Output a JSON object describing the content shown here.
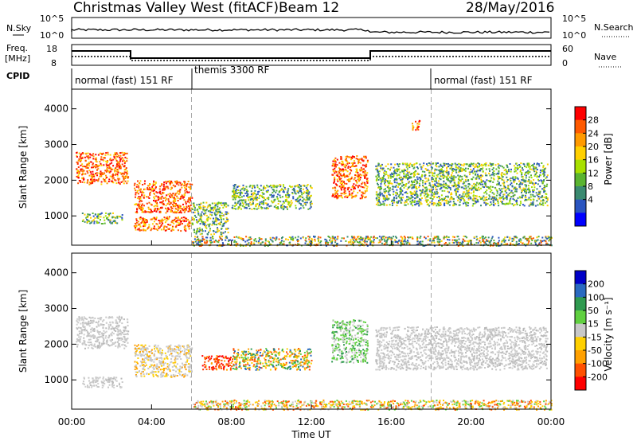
{
  "header": {
    "title": "Christmas Valley West (fitACF)",
    "beam": "Beam 12",
    "date": "28/May/2016"
  },
  "strips": {
    "nsky_label": "N.Sky",
    "nsky_ticks": [
      "10^5",
      "10^0"
    ],
    "nsearch_label": "N.Search",
    "freq_label": "Freq.",
    "freq_unit": "[MHz]",
    "freq_ticks": [
      "18",
      "8"
    ],
    "nave_label": "Nave",
    "nave_ticks": [
      "60",
      "0"
    ],
    "cpid_label": "CPID",
    "cpid_segments": [
      {
        "label": "normal (fast) 151 RF",
        "start_h": 0,
        "end_h": 6
      },
      {
        "label": "themis 3300 RF",
        "start_h": 6,
        "end_h": 18
      },
      {
        "label": "normal (fast) 151 RF",
        "start_h": 18,
        "end_h": 24
      }
    ]
  },
  "chart_data": [
    {
      "type": "heatmap",
      "name": "power-panel",
      "ylabel": "Slant Range [km]",
      "xlim": [
        0,
        24
      ],
      "ylim": [
        180,
        4550
      ],
      "yticks": [
        1000,
        2000,
        3000,
        4000
      ],
      "colorbar": {
        "label": "Power [dB]",
        "ticks": [
          "28",
          "24",
          "20",
          "16",
          "12",
          "8",
          "4"
        ],
        "colors": [
          "#ff0000",
          "#ff5a00",
          "#ff9a00",
          "#ffd000",
          "#a8e000",
          "#5ab430",
          "#3a8a70",
          "#2a55c0",
          "#0000ff"
        ]
      },
      "regions": [
        {
          "t": [
            0.2,
            2.8
          ],
          "r": [
            1900,
            2800
          ],
          "level": "high"
        },
        {
          "t": [
            0.5,
            2.5
          ],
          "r": [
            800,
            1100
          ],
          "level": "mid"
        },
        {
          "t": [
            3.1,
            6.0
          ],
          "r": [
            1100,
            2000
          ],
          "level": "high"
        },
        {
          "t": [
            3.1,
            6.0
          ],
          "r": [
            600,
            1000
          ],
          "level": "high"
        },
        {
          "t": [
            6.0,
            7.8
          ],
          "r": [
            500,
            1400
          ],
          "level": "mid"
        },
        {
          "t": [
            8.0,
            12.0
          ],
          "r": [
            1200,
            1900
          ],
          "level": "mid"
        },
        {
          "t": [
            13.0,
            14.8
          ],
          "r": [
            1500,
            2700
          ],
          "level": "high"
        },
        {
          "t": [
            15.2,
            23.8
          ],
          "r": [
            1300,
            2500
          ],
          "level": "mid"
        },
        {
          "t": [
            17.0,
            17.4
          ],
          "r": [
            3400,
            3700
          ],
          "level": "high"
        },
        {
          "t": [
            6.0,
            24.0
          ],
          "r": [
            180,
            450
          ],
          "level": "low"
        }
      ]
    },
    {
      "type": "heatmap",
      "name": "velocity-panel",
      "ylabel": "Slant Range [km]",
      "xlabel": "Time UT",
      "xlim": [
        0,
        24
      ],
      "ylim": [
        180,
        4550
      ],
      "yticks": [
        1000,
        2000,
        3000,
        4000
      ],
      "xticks": [
        "00:00",
        "04:00",
        "08:00",
        "12:00",
        "16:00",
        "20:00",
        "00:00"
      ],
      "colorbar": {
        "label": "Velocity [m s⁻¹]",
        "ticks": [
          "200",
          "100",
          "50",
          "15",
          "-15",
          "-50",
          "-100",
          "-200"
        ],
        "colors": [
          "#0000c8",
          "#2a6ac0",
          "#2f9a50",
          "#60d040",
          "#c8c8c8",
          "#ffd000",
          "#ffa000",
          "#ff5000",
          "#ff0000"
        ]
      },
      "regions": [
        {
          "t": [
            0.2,
            2.8
          ],
          "r": [
            1900,
            2800
          ],
          "level": "ground"
        },
        {
          "t": [
            0.5,
            2.5
          ],
          "r": [
            800,
            1100
          ],
          "level": "ground"
        },
        {
          "t": [
            3.1,
            6.0
          ],
          "r": [
            1100,
            2000
          ],
          "level": "mixed"
        },
        {
          "t": [
            6.5,
            8.0
          ],
          "r": [
            1300,
            1700
          ],
          "level": "neg"
        },
        {
          "t": [
            8.0,
            12.0
          ],
          "r": [
            1300,
            1900
          ],
          "level": "flow"
        },
        {
          "t": [
            13.0,
            14.8
          ],
          "r": [
            1500,
            2700
          ],
          "level": "pos"
        },
        {
          "t": [
            15.2,
            23.8
          ],
          "r": [
            1300,
            2500
          ],
          "level": "ground"
        },
        {
          "t": [
            6.0,
            24.0
          ],
          "r": [
            180,
            450
          ],
          "level": "mix_low"
        }
      ]
    }
  ]
}
